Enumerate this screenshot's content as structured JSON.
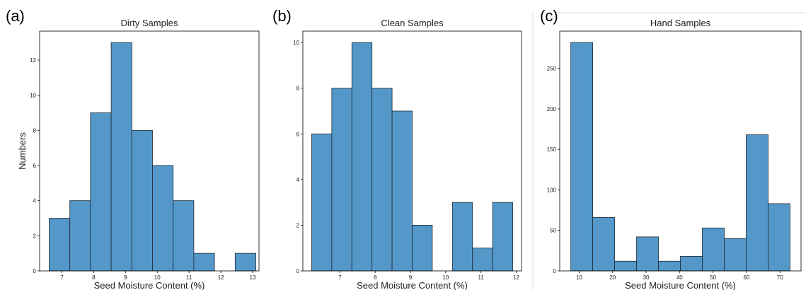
{
  "chart_data": [
    {
      "type": "bar",
      "panel_label": "(a)",
      "title": "Dirty Samples",
      "xlabel": "Seed Moisture Content (%)",
      "ylabel": "Numbers",
      "bin_edges": [
        6.6,
        7.25,
        7.9,
        8.55,
        9.2,
        9.85,
        10.5,
        11.15,
        11.8,
        12.45,
        13.1
      ],
      "values": [
        3,
        4,
        9,
        13,
        8,
        6,
        4,
        1,
        0,
        1
      ],
      "xlim": [
        6.3,
        13.2
      ],
      "ylim": [
        0,
        13.65
      ],
      "xticks": [
        7,
        8,
        9,
        10,
        11,
        12,
        13
      ],
      "yticks": [
        0,
        2,
        4,
        6,
        8,
        10,
        12
      ]
    },
    {
      "type": "bar",
      "panel_label": "(b)",
      "title": "Clean Samples",
      "xlabel": "Seed Moisture Content (%)",
      "ylabel": "",
      "bin_edges": [
        6.2,
        6.77,
        7.34,
        7.91,
        8.48,
        9.05,
        9.62,
        10.19,
        10.76,
        11.33,
        11.9
      ],
      "values": [
        6,
        8,
        10,
        8,
        7,
        2,
        0,
        3,
        1,
        3
      ],
      "xlim": [
        5.95,
        12.15
      ],
      "ylim": [
        0,
        10.5
      ],
      "xticks": [
        7,
        8,
        9,
        10,
        11,
        12
      ],
      "yticks": [
        0,
        2,
        4,
        6,
        8,
        10
      ]
    },
    {
      "type": "bar",
      "panel_label": "(c)",
      "title": "Hand Samples",
      "xlabel": "Seed Moisture Content (%)",
      "ylabel": "",
      "bin_edges": [
        7.5,
        14.05,
        20.6,
        27.15,
        33.7,
        40.25,
        46.8,
        53.35,
        59.9,
        66.45,
        73.0
      ],
      "values": [
        282,
        66,
        12,
        42,
        12,
        18,
        53,
        40,
        168,
        83
      ],
      "xlim": [
        4.2,
        76.3
      ],
      "ylim": [
        0,
        296
      ],
      "xticks": [
        10,
        20,
        30,
        40,
        50,
        60,
        70
      ],
      "yticks": [
        0,
        50,
        100,
        150,
        200,
        250
      ]
    }
  ]
}
